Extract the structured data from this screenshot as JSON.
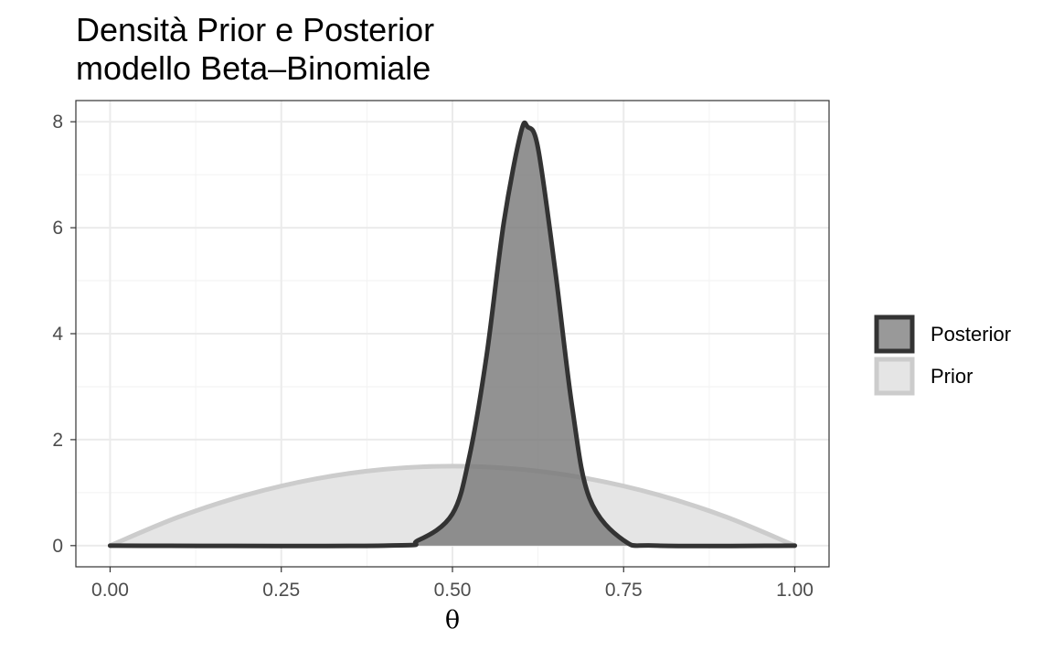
{
  "chart_data": {
    "type": "area",
    "title": "Densità Prior e Posterior",
    "subtitle": "modello Beta–Binomiale",
    "xlabel": "θ",
    "ylabel": "",
    "xlim": [
      0,
      1
    ],
    "ylim": [
      0,
      8
    ],
    "x_ticks": [
      {
        "value": 0.0,
        "label": "0.00"
      },
      {
        "value": 0.25,
        "label": "0.25"
      },
      {
        "value": 0.5,
        "label": "0.50"
      },
      {
        "value": 0.75,
        "label": "0.75"
      },
      {
        "value": 1.0,
        "label": "1.00"
      }
    ],
    "y_ticks": [
      {
        "value": 0,
        "label": "0"
      },
      {
        "value": 2,
        "label": "2"
      },
      {
        "value": 4,
        "label": "4"
      },
      {
        "value": 6,
        "label": "6"
      },
      {
        "value": 8,
        "label": "8"
      }
    ],
    "grid": true,
    "legend_position": "right",
    "series": [
      {
        "name": "Prior",
        "fill": "#e5e5e5",
        "stroke": "#cccccc",
        "x": [
          0.0,
          0.1,
          0.2,
          0.3,
          0.4,
          0.5,
          0.6,
          0.7,
          0.8,
          0.9,
          1.0
        ],
        "y": [
          0.0,
          0.54,
          0.96,
          1.26,
          1.44,
          1.5,
          1.44,
          1.26,
          0.96,
          0.54,
          0.0
        ]
      },
      {
        "name": "Posterior",
        "fill": "#777777",
        "stroke": "#333333",
        "x": [
          0.0,
          0.4,
          0.45,
          0.5,
          0.525,
          0.55,
          0.575,
          0.6,
          0.61,
          0.625,
          0.65,
          0.675,
          0.7,
          0.75,
          0.8,
          1.0
        ],
        "y": [
          0.0,
          0.0,
          0.1,
          0.6,
          1.7,
          3.6,
          6.1,
          7.8,
          7.9,
          7.5,
          5.2,
          2.6,
          0.9,
          0.1,
          0.0,
          0.0
        ]
      }
    ],
    "legend": [
      {
        "label": "Posterior",
        "fill": "#999999",
        "stroke": "#333333"
      },
      {
        "label": "Prior",
        "fill": "#e5e5e5",
        "stroke": "#cccccc"
      }
    ]
  }
}
